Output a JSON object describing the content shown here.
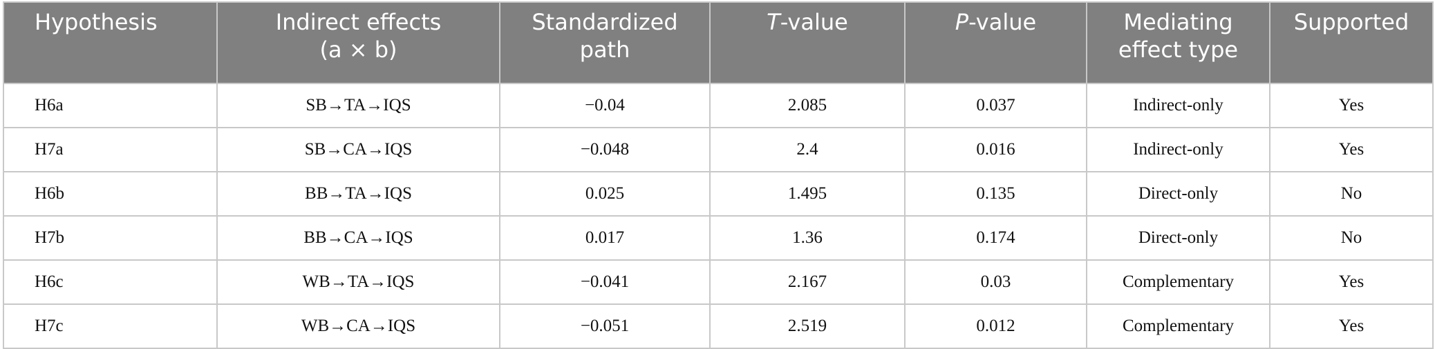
{
  "table": {
    "header": [
      "Hypothesis",
      "Indirect effects (a × b)",
      "Standardized path",
      {
        "italic": "T",
        "rest": "-value"
      },
      {
        "italic": "P",
        "rest": "-value"
      },
      "Mediating effect type",
      "Supported"
    ],
    "rows": [
      [
        "H6a",
        "SB→TA→IQS",
        "−0.04",
        "2.085",
        "0.037",
        "Indirect-only",
        "Yes"
      ],
      [
        "H7a",
        "SB→CA→IQS",
        "−0.048",
        "2.4",
        "0.016",
        "Indirect-only",
        "Yes"
      ],
      [
        "H6b",
        "BB→TA→IQS",
        "0.025",
        "1.495",
        "0.135",
        "Direct-only",
        "No"
      ],
      [
        "H7b",
        "BB→CA→IQS",
        "0.017",
        "1.36",
        "0.174",
        "Direct-only",
        "No"
      ],
      [
        "H6c",
        "WB→TA→IQS",
        "−0.041",
        "2.167",
        "0.03",
        "Complementary",
        "Yes"
      ],
      [
        "H7c",
        "WB→CA→IQS",
        "−0.051",
        "2.519",
        "0.012",
        "Complementary",
        "Yes"
      ]
    ]
  }
}
